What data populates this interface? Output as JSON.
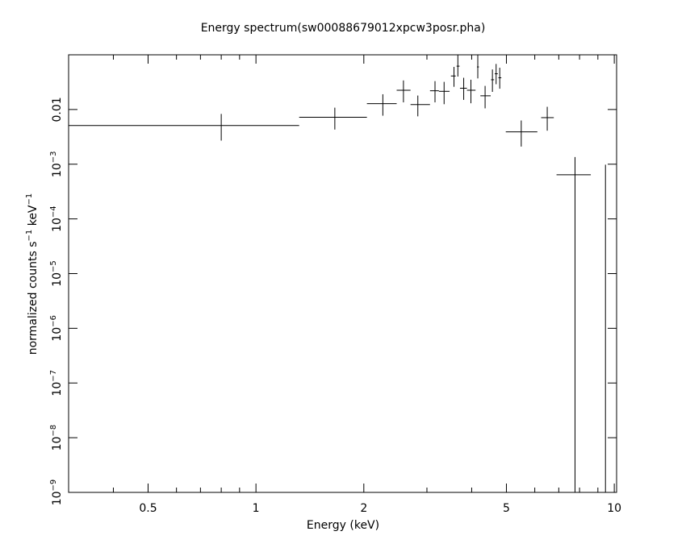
{
  "chart_data": {
    "type": "scatter",
    "title": "Energy spectrum(sw00088679012xpcw3posr.pha)",
    "xlabel": "Energy (keV)",
    "ylabel": "normalized counts s",
    "ylabel_parts": [
      "normalized counts s",
      "−1",
      " keV",
      "−1"
    ],
    "x_scale": "log",
    "y_scale": "log",
    "xlim": [
      0.3,
      10.15
    ],
    "ylim": [
      1e-09,
      0.1
    ],
    "grid": false,
    "x_ticks": [
      {
        "value": 0.5,
        "label": "0.5"
      },
      {
        "value": 1,
        "label": "1"
      },
      {
        "value": 2,
        "label": "2"
      },
      {
        "value": 5,
        "label": "5"
      },
      {
        "value": 10,
        "label": "10"
      }
    ],
    "y_ticks": [
      {
        "value": 0.01,
        "base": "0.01",
        "exp": ""
      },
      {
        "value": 0.001,
        "base": "10",
        "exp": "−3"
      },
      {
        "value": 0.0001,
        "base": "10",
        "exp": "−4"
      },
      {
        "value": 1e-05,
        "base": "10",
        "exp": "−5"
      },
      {
        "value": 1e-06,
        "base": "10",
        "exp": "−6"
      },
      {
        "value": 1e-07,
        "base": "10",
        "exp": "−7"
      },
      {
        "value": 1e-08,
        "base": "10",
        "exp": "−8"
      },
      {
        "value": 1e-09,
        "base": "10",
        "exp": "−9"
      }
    ],
    "points": [
      {
        "x": 0.8,
        "xlo": 0.3,
        "xhi": 1.32,
        "y": 0.0051,
        "ylo": 0.0027,
        "yhi": 0.0083
      },
      {
        "x": 1.66,
        "xlo": 1.32,
        "xhi": 2.04,
        "y": 0.0072,
        "ylo": 0.0043,
        "yhi": 0.0108
      },
      {
        "x": 2.26,
        "xlo": 2.04,
        "xhi": 2.47,
        "y": 0.0128,
        "ylo": 0.0077,
        "yhi": 0.019
      },
      {
        "x": 2.58,
        "xlo": 2.47,
        "xhi": 2.7,
        "y": 0.0225,
        "ylo": 0.0135,
        "yhi": 0.034
      },
      {
        "x": 2.83,
        "xlo": 2.7,
        "xhi": 3.06,
        "y": 0.0123,
        "ylo": 0.0075,
        "yhi": 0.018
      },
      {
        "x": 3.16,
        "xlo": 3.06,
        "xhi": 3.24,
        "y": 0.022,
        "ylo": 0.0135,
        "yhi": 0.033
      },
      {
        "x": 3.35,
        "xlo": 3.24,
        "xhi": 3.47,
        "y": 0.0215,
        "ylo": 0.0125,
        "yhi": 0.032
      },
      {
        "x": 3.57,
        "xlo": 3.5,
        "xhi": 3.61,
        "y": 0.041,
        "ylo": 0.026,
        "yhi": 0.06
      },
      {
        "x": 3.66,
        "xlo": 3.63,
        "xhi": 3.7,
        "y": 0.062,
        "ylo": 0.04,
        "yhi": 0.1
      },
      {
        "x": 3.8,
        "xlo": 3.71,
        "xhi": 3.88,
        "y": 0.0245,
        "ylo": 0.015,
        "yhi": 0.038
      },
      {
        "x": 3.98,
        "xlo": 3.88,
        "xhi": 4.1,
        "y": 0.0225,
        "ylo": 0.013,
        "yhi": 0.035
      },
      {
        "x": 4.16,
        "xlo": 4.14,
        "xhi": 4.19,
        "y": 0.06,
        "ylo": 0.037,
        "yhi": 0.1
      },
      {
        "x": 4.36,
        "xlo": 4.23,
        "xhi": 4.52,
        "y": 0.0178,
        "ylo": 0.0105,
        "yhi": 0.027
      },
      {
        "x": 4.57,
        "xlo": 4.53,
        "xhi": 4.62,
        "y": 0.035,
        "ylo": 0.021,
        "yhi": 0.054
      },
      {
        "x": 4.68,
        "xlo": 4.64,
        "xhi": 4.73,
        "y": 0.045,
        "ylo": 0.029,
        "yhi": 0.068
      },
      {
        "x": 4.79,
        "xlo": 4.75,
        "xhi": 4.84,
        "y": 0.038,
        "ylo": 0.024,
        "yhi": 0.058
      },
      {
        "x": 5.5,
        "xlo": 4.98,
        "xhi": 6.1,
        "y": 0.0039,
        "ylo": 0.0021,
        "yhi": 0.0063
      },
      {
        "x": 6.5,
        "xlo": 6.25,
        "xhi": 6.78,
        "y": 0.0071,
        "ylo": 0.0041,
        "yhi": 0.0112
      },
      {
        "x": 7.77,
        "xlo": 6.9,
        "xhi": 8.6,
        "y": 0.00064,
        "ylo": 1e-09,
        "yhi": 0.00135
      },
      {
        "x": 9.45,
        "xlo": 9.45,
        "xhi": 9.45,
        "y": 0.00098,
        "ylo": 1e-09,
        "yhi": 0.00098
      }
    ]
  }
}
